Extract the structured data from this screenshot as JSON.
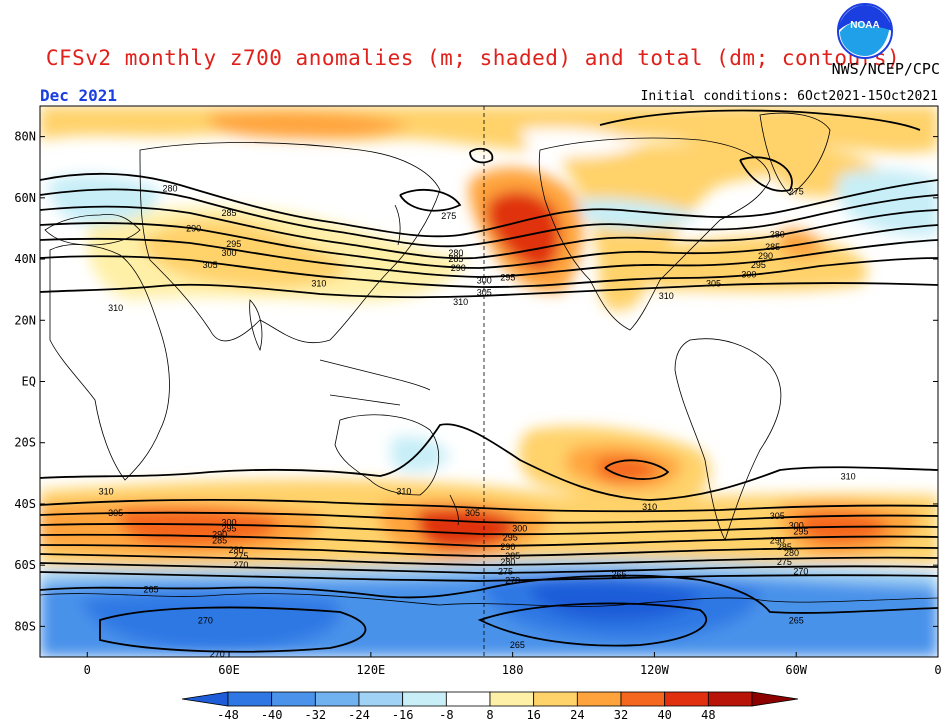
{
  "title": "CFSv2 monthly z700 anomalies (m; shaded) and total (dm; contours)",
  "agency": "NWS/NCEP/CPC",
  "month": "Dec 2021",
  "initial_conditions": "Initial conditions: 6Oct2021-15Oct2021",
  "logo_text": "NOAA",
  "lat_labels": [
    "80N",
    "60N",
    "40N",
    "20N",
    "EQ",
    "20S",
    "40S",
    "60S",
    "80S"
  ],
  "lon_labels": [
    "0",
    "60E",
    "120E",
    "180",
    "120W",
    "60W",
    "0"
  ],
  "colorbar": {
    "labels": [
      "-48",
      "-40",
      "-32",
      "-24",
      "-16",
      "-8",
      "8",
      "16",
      "24",
      "32",
      "40",
      "48"
    ],
    "colors": [
      "#1e5cd8",
      "#2f78e4",
      "#4a92ea",
      "#70b2f0",
      "#9fd2f4",
      "#c8eef7",
      "#ffffff",
      "#fff0a8",
      "#ffd26a",
      "#ffa43c",
      "#f5661e",
      "#e0300f",
      "#b81408",
      "#8c0000"
    ]
  },
  "anomaly_colors": {
    "neg_strong": "#1e5cd8",
    "neg_mid": "#4a92ea",
    "neg_weak": "#9fd2f4",
    "pos_weak": "#fff0a8",
    "pos_mid": "#ffd26a",
    "pos_strong": "#ffa43c",
    "pos_max": "#e0300f"
  },
  "contour_labels": {
    "nh": [
      {
        "text": "280",
        "lon": 35,
        "lat": 63
      },
      {
        "text": "285",
        "lon": 60,
        "lat": 55
      },
      {
        "text": "290",
        "lon": 45,
        "lat": 50
      },
      {
        "text": "295",
        "lon": 62,
        "lat": 45
      },
      {
        "text": "300",
        "lon": 60,
        "lat": 42
      },
      {
        "text": "305",
        "lon": 52,
        "lat": 38
      },
      {
        "text": "310",
        "lon": 98,
        "lat": 32
      },
      {
        "text": "310",
        "lon": 12,
        "lat": 24
      },
      {
        "text": "275",
        "lon": 153,
        "lat": 54
      },
      {
        "text": "280",
        "lon": 156,
        "lat": 42
      },
      {
        "text": "285",
        "lon": 156,
        "lat": 40
      },
      {
        "text": "290",
        "lon": 157,
        "lat": 37
      },
      {
        "text": "300",
        "lon": 168,
        "lat": 33
      },
      {
        "text": "295",
        "lon": 178,
        "lat": 34
      },
      {
        "text": "305",
        "lon": 168,
        "lat": 29
      },
      {
        "text": "310",
        "lon": 158,
        "lat": 26
      },
      {
        "text": "275",
        "lon": 245,
        "lat": 91
      },
      {
        "text": "275",
        "lon": 300,
        "lat": 62
      },
      {
        "text": "280",
        "lon": 292,
        "lat": 48
      },
      {
        "text": "285",
        "lon": 290,
        "lat": 44
      },
      {
        "text": "290",
        "lon": 287,
        "lat": 41
      },
      {
        "text": "295",
        "lon": 284,
        "lat": 38
      },
      {
        "text": "300",
        "lon": 280,
        "lat": 35
      },
      {
        "text": "305",
        "lon": 265,
        "lat": 32
      },
      {
        "text": "310",
        "lon": 245,
        "lat": 28
      }
    ],
    "sh": [
      {
        "text": "310",
        "lon": 8,
        "lat": -36
      },
      {
        "text": "310",
        "lon": 134,
        "lat": -36
      },
      {
        "text": "310",
        "lon": 238,
        "lat": -41
      },
      {
        "text": "310",
        "lon": 322,
        "lat": -31
      },
      {
        "text": "305",
        "lon": 12,
        "lat": -43
      },
      {
        "text": "305",
        "lon": 163,
        "lat": -43
      },
      {
        "text": "305",
        "lon": 292,
        "lat": -44
      },
      {
        "text": "300",
        "lon": 60,
        "lat": -46
      },
      {
        "text": "295",
        "lon": 60,
        "lat": -48
      },
      {
        "text": "290",
        "lon": 56,
        "lat": -50
      },
      {
        "text": "285",
        "lon": 56,
        "lat": -52
      },
      {
        "text": "280",
        "lon": 63,
        "lat": -55
      },
      {
        "text": "275",
        "lon": 65,
        "lat": -57
      },
      {
        "text": "270",
        "lon": 65,
        "lat": -60
      },
      {
        "text": "300",
        "lon": 183,
        "lat": -48
      },
      {
        "text": "295",
        "lon": 179,
        "lat": -51
      },
      {
        "text": "290",
        "lon": 178,
        "lat": -54
      },
      {
        "text": "285",
        "lon": 180,
        "lat": -57
      },
      {
        "text": "280",
        "lon": 178,
        "lat": -59
      },
      {
        "text": "275",
        "lon": 177,
        "lat": -62
      },
      {
        "text": "270",
        "lon": 180,
        "lat": -65
      },
      {
        "text": "300",
        "lon": 300,
        "lat": -47
      },
      {
        "text": "295",
        "lon": 302,
        "lat": -49
      },
      {
        "text": "290",
        "lon": 292,
        "lat": -52
      },
      {
        "text": "285",
        "lon": 295,
        "lat": -54
      },
      {
        "text": "280",
        "lon": 298,
        "lat": -56
      },
      {
        "text": "275",
        "lon": 295,
        "lat": -59
      },
      {
        "text": "270",
        "lon": 302,
        "lat": -62
      },
      {
        "text": "265",
        "lon": 27,
        "lat": -68
      },
      {
        "text": "265",
        "lon": 225,
        "lat": -63
      },
      {
        "text": "265",
        "lon": 300,
        "lat": -78
      },
      {
        "text": "265",
        "lon": 182,
        "lat": -86
      },
      {
        "text": "270",
        "lon": 50,
        "lat": -78
      },
      {
        "text": "270",
        "lon": 55,
        "lat": -89
      }
    ]
  }
}
